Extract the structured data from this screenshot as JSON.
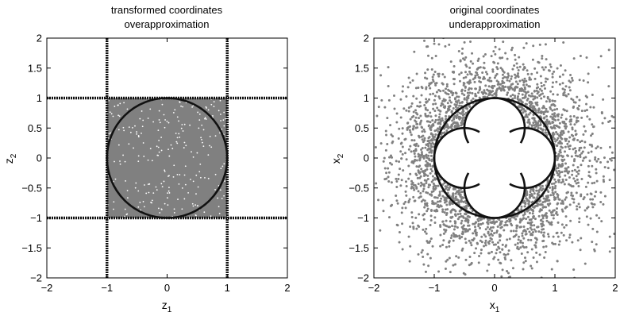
{
  "chart_data": [
    {
      "type": "scatter",
      "title": [
        "transformed coordinates",
        "overapproximation"
      ],
      "xlabel": {
        "base": "z",
        "sub": "1"
      },
      "ylabel": {
        "base": "z",
        "sub": "2"
      },
      "xlim": [
        -2,
        2
      ],
      "ylim": [
        -2,
        2
      ],
      "xticks": [
        -2,
        -1,
        0,
        1,
        2
      ],
      "yticks": [
        -2,
        -1.5,
        -1,
        -0.5,
        0,
        0.5,
        1,
        1.5,
        2
      ],
      "xtick_labels": [
        "−2",
        "−1",
        "0",
        "1",
        "2"
      ],
      "ytick_labels": [
        "−2",
        "−1.5",
        "−1",
        "−0.5",
        "0",
        "0.5",
        "1",
        "1.5",
        "2"
      ],
      "grid": false,
      "point_color": "#808080",
      "curve_color": "#111111",
      "sample_region": {
        "shape": "square",
        "x": [
          -1,
          1
        ],
        "y": [
          -1,
          1
        ]
      },
      "boundary_lines": {
        "x": [
          -1,
          1
        ],
        "y": [
          -1,
          1
        ]
      },
      "curves": [
        {
          "shape": "circle",
          "center": [
            0,
            0
          ],
          "radius": 1
        }
      ]
    },
    {
      "type": "scatter",
      "title": [
        "original coordinates",
        "underapproximation"
      ],
      "xlabel": {
        "base": "x",
        "sub": "1"
      },
      "ylabel": {
        "base": "x",
        "sub": "2"
      },
      "xlim": [
        -2,
        2
      ],
      "ylim": [
        -2,
        2
      ],
      "xticks": [
        -2,
        -1,
        0,
        1,
        2
      ],
      "yticks": [
        -2,
        -1.5,
        -1,
        -0.5,
        0,
        0.5,
        1,
        1.5,
        2
      ],
      "xtick_labels": [
        "−2",
        "−1",
        "0",
        "1",
        "2"
      ],
      "ytick_labels": [
        "−2",
        "−1.5",
        "−1",
        "−0.5",
        "0",
        "0.5",
        "1",
        "1.5",
        "2"
      ],
      "grid": false,
      "point_color": "#808080",
      "curve_color": "#111111",
      "sample_region": {
        "shape": "gaussian",
        "center": [
          0,
          0
        ],
        "sigma": 0.75
      },
      "curves": [
        {
          "shape": "circle",
          "center": [
            0,
            0
          ],
          "radius": 1
        },
        {
          "shape": "arc",
          "center": [
            0,
            0.5
          ],
          "radius": 0.5,
          "side": "top"
        },
        {
          "shape": "arc",
          "center": [
            0,
            -0.5
          ],
          "radius": 0.5,
          "side": "bottom"
        },
        {
          "shape": "arc",
          "center": [
            0.5,
            0
          ],
          "radius": 0.5,
          "side": "right"
        },
        {
          "shape": "arc",
          "center": [
            -0.5,
            0
          ],
          "radius": 0.5,
          "side": "left"
        }
      ]
    }
  ]
}
